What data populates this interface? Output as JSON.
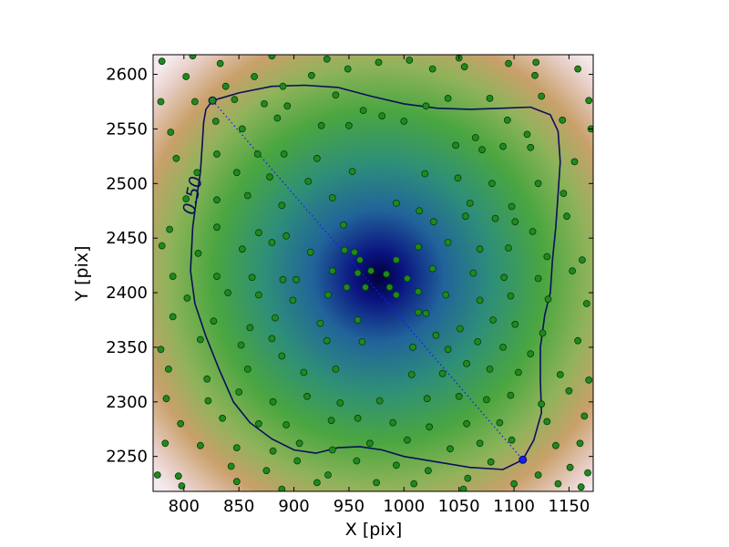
{
  "chart_data": {
    "type": "scatter",
    "xlabel": "X [pix]",
    "ylabel": "Y [pix]",
    "xlim": [
      772,
      1172
    ],
    "ylim": [
      2218,
      2618
    ],
    "xticks": [
      800,
      850,
      900,
      950,
      1000,
      1050,
      1100,
      1150
    ],
    "yticks": [
      2250,
      2300,
      2350,
      2400,
      2450,
      2500,
      2550,
      2600
    ],
    "grid": false,
    "colors": {
      "point": "#1e8a1e",
      "point_edge": "#0b3a0b",
      "contour": "#0a0f5a",
      "endpoint_marker": "#1a1aff",
      "center": "#000040",
      "edge": "#f4e9ec"
    },
    "contour": {
      "level_label": "0.50",
      "label_position": [
        813,
        2488
      ],
      "label_angle_deg": -78,
      "path": [
        [
          815,
          2510
        ],
        [
          817,
          2540
        ],
        [
          818,
          2556
        ],
        [
          820,
          2568
        ],
        [
          826,
          2576
        ],
        [
          850,
          2583
        ],
        [
          880,
          2589
        ],
        [
          910,
          2590
        ],
        [
          940,
          2588
        ],
        [
          970,
          2580
        ],
        [
          1000,
          2573
        ],
        [
          1030,
          2569
        ],
        [
          1060,
          2568
        ],
        [
          1090,
          2569
        ],
        [
          1115,
          2570
        ],
        [
          1133,
          2563
        ],
        [
          1140,
          2548
        ],
        [
          1142,
          2520
        ],
        [
          1140,
          2490
        ],
        [
          1138,
          2460
        ],
        [
          1135,
          2430
        ],
        [
          1133,
          2400
        ],
        [
          1128,
          2380
        ],
        [
          1124,
          2350
        ],
        [
          1124,
          2320
        ],
        [
          1125,
          2290
        ],
        [
          1118,
          2265
        ],
        [
          1108,
          2247
        ],
        [
          1090,
          2238
        ],
        [
          1060,
          2240
        ],
        [
          1030,
          2245
        ],
        [
          1000,
          2250
        ],
        [
          980,
          2256
        ],
        [
          960,
          2259
        ],
        [
          940,
          2258
        ],
        [
          920,
          2253
        ],
        [
          900,
          2256
        ],
        [
          880,
          2266
        ],
        [
          860,
          2281
        ],
        [
          845,
          2300
        ],
        [
          832,
          2330
        ],
        [
          820,
          2360
        ],
        [
          810,
          2390
        ],
        [
          806,
          2420
        ],
        [
          808,
          2460
        ],
        [
          812,
          2490
        ],
        [
          815,
          2510
        ]
      ]
    },
    "line_segment": {
      "start": [
        826,
        2576
      ],
      "end": [
        1108,
        2247
      ],
      "style": "dotted"
    },
    "density_center": [
      977,
      2415
    ],
    "points": [
      [
        780,
        2612
      ],
      [
        808,
        2617
      ],
      [
        833,
        2610
      ],
      [
        880,
        2617
      ],
      [
        930,
        2614
      ],
      [
        977,
        2611
      ],
      [
        1005,
        2613
      ],
      [
        1050,
        2615
      ],
      [
        1095,
        2610
      ],
      [
        1120,
        2611
      ],
      [
        802,
        2598
      ],
      [
        838,
        2589
      ],
      [
        864,
        2598
      ],
      [
        890,
        2589
      ],
      [
        916,
        2599
      ],
      [
        949,
        2605
      ],
      [
        1026,
        2605
      ],
      [
        1055,
        2607
      ],
      [
        1119,
        2599
      ],
      [
        1158,
        2605
      ],
      [
        779,
        2575
      ],
      [
        810,
        2575
      ],
      [
        846,
        2577
      ],
      [
        873,
        2573
      ],
      [
        894,
        2571
      ],
      [
        938,
        2581
      ],
      [
        963,
        2567
      ],
      [
        1020,
        2571
      ],
      [
        1040,
        2578
      ],
      [
        1078,
        2578
      ],
      [
        1125,
        2580
      ],
      [
        1168,
        2576
      ],
      [
        788,
        2547
      ],
      [
        829,
        2557
      ],
      [
        853,
        2550
      ],
      [
        885,
        2560
      ],
      [
        925,
        2553
      ],
      [
        950,
        2553
      ],
      [
        980,
        2562
      ],
      [
        1000,
        2557
      ],
      [
        1065,
        2542
      ],
      [
        1094,
        2558
      ],
      [
        1112,
        2545
      ],
      [
        1144,
        2558
      ],
      [
        1170,
        2550
      ],
      [
        793,
        2523
      ],
      [
        830,
        2527
      ],
      [
        867,
        2527
      ],
      [
        891,
        2527
      ],
      [
        921,
        2523
      ],
      [
        1047,
        2535
      ],
      [
        1071,
        2531
      ],
      [
        1090,
        2534
      ],
      [
        1115,
        2533
      ],
      [
        1155,
        2520
      ],
      [
        812,
        2510
      ],
      [
        848,
        2510
      ],
      [
        878,
        2506
      ],
      [
        913,
        2502
      ],
      [
        953,
        2511
      ],
      [
        1019,
        2509
      ],
      [
        1049,
        2505
      ],
      [
        1080,
        2500
      ],
      [
        1122,
        2500
      ],
      [
        1145,
        2491
      ],
      [
        802,
        2486
      ],
      [
        830,
        2485
      ],
      [
        858,
        2489
      ],
      [
        889,
        2480
      ],
      [
        935,
        2487
      ],
      [
        993,
        2482
      ],
      [
        1014,
        2475
      ],
      [
        1060,
        2482
      ],
      [
        1098,
        2479
      ],
      [
        1148,
        2470
      ],
      [
        787,
        2458
      ],
      [
        830,
        2460
      ],
      [
        868,
        2455
      ],
      [
        893,
        2452
      ],
      [
        945,
        2462
      ],
      [
        1027,
        2465
      ],
      [
        1056,
        2470
      ],
      [
        1083,
        2468
      ],
      [
        1101,
        2465
      ],
      [
        1117,
        2456
      ],
      [
        780,
        2443
      ],
      [
        813,
        2436
      ],
      [
        853,
        2440
      ],
      [
        880,
        2446
      ],
      [
        915,
        2437
      ],
      [
        955,
        2437
      ],
      [
        1013,
        2442
      ],
      [
        1040,
        2446
      ],
      [
        1069,
        2440
      ],
      [
        1095,
        2441
      ],
      [
        1130,
        2433
      ],
      [
        1162,
        2430
      ],
      [
        790,
        2415
      ],
      [
        830,
        2415
      ],
      [
        862,
        2414
      ],
      [
        890,
        2412
      ],
      [
        935,
        2420
      ],
      [
        958,
        2418
      ],
      [
        970,
        2420
      ],
      [
        984,
        2417
      ],
      [
        1026,
        2422
      ],
      [
        1063,
        2418
      ],
      [
        1091,
        2414
      ],
      [
        1122,
        2413
      ],
      [
        1153,
        2420
      ],
      [
        803,
        2395
      ],
      [
        840,
        2400
      ],
      [
        868,
        2398
      ],
      [
        899,
        2393
      ],
      [
        931,
        2398
      ],
      [
        948,
        2405
      ],
      [
        965,
        2405
      ],
      [
        993,
        2398
      ],
      [
        1013,
        2401
      ],
      [
        1038,
        2398
      ],
      [
        1069,
        2393
      ],
      [
        1097,
        2397
      ],
      [
        1131,
        2394
      ],
      [
        1166,
        2390
      ],
      [
        790,
        2378
      ],
      [
        827,
        2374
      ],
      [
        860,
        2368
      ],
      [
        883,
        2377
      ],
      [
        924,
        2372
      ],
      [
        958,
        2375
      ],
      [
        1020,
        2381
      ],
      [
        1051,
        2367
      ],
      [
        1081,
        2375
      ],
      [
        1101,
        2371
      ],
      [
        1126,
        2363
      ],
      [
        779,
        2348
      ],
      [
        815,
        2357
      ],
      [
        852,
        2352
      ],
      [
        880,
        2358
      ],
      [
        930,
        2356
      ],
      [
        962,
        2355
      ],
      [
        1008,
        2350
      ],
      [
        1040,
        2348
      ],
      [
        1067,
        2355
      ],
      [
        1090,
        2350
      ],
      [
        1115,
        2344
      ],
      [
        1158,
        2356
      ],
      [
        786,
        2330
      ],
      [
        821,
        2321
      ],
      [
        858,
        2330
      ],
      [
        889,
        2342
      ],
      [
        909,
        2327
      ],
      [
        938,
        2330
      ],
      [
        1007,
        2325
      ],
      [
        1035,
        2326
      ],
      [
        1057,
        2335
      ],
      [
        1078,
        2330
      ],
      [
        1104,
        2327
      ],
      [
        1142,
        2325
      ],
      [
        1168,
        2320
      ],
      [
        784,
        2303
      ],
      [
        822,
        2301
      ],
      [
        850,
        2309
      ],
      [
        881,
        2300
      ],
      [
        912,
        2305
      ],
      [
        942,
        2299
      ],
      [
        978,
        2301
      ],
      [
        1021,
        2303
      ],
      [
        1050,
        2305
      ],
      [
        1075,
        2302
      ],
      [
        1097,
        2306
      ],
      [
        1125,
        2298
      ],
      [
        1150,
        2310
      ],
      [
        797,
        2280
      ],
      [
        835,
        2285
      ],
      [
        868,
        2280
      ],
      [
        893,
        2279
      ],
      [
        934,
        2283
      ],
      [
        958,
        2285
      ],
      [
        990,
        2281
      ],
      [
        1023,
        2277
      ],
      [
        1057,
        2280
      ],
      [
        1087,
        2281
      ],
      [
        1130,
        2282
      ],
      [
        1164,
        2287
      ],
      [
        783,
        2262
      ],
      [
        815,
        2260
      ],
      [
        848,
        2258
      ],
      [
        881,
        2255
      ],
      [
        905,
        2262
      ],
      [
        935,
        2256
      ],
      [
        969,
        2262
      ],
      [
        1003,
        2265
      ],
      [
        1042,
        2257
      ],
      [
        1069,
        2262
      ],
      [
        1098,
        2265
      ],
      [
        1138,
        2260
      ],
      [
        1160,
        2262
      ],
      [
        776,
        2233
      ],
      [
        795,
        2232
      ],
      [
        843,
        2241
      ],
      [
        875,
        2237
      ],
      [
        903,
        2246
      ],
      [
        931,
        2233
      ],
      [
        957,
        2246
      ],
      [
        993,
        2242
      ],
      [
        1022,
        2237
      ],
      [
        1058,
        2230
      ],
      [
        1079,
        2245
      ],
      [
        1122,
        2233
      ],
      [
        1151,
        2240
      ],
      [
        1167,
        2235
      ],
      [
        798,
        2223
      ],
      [
        848,
        2227
      ],
      [
        889,
        2220
      ],
      [
        921,
        2226
      ],
      [
        975,
        2226
      ],
      [
        1009,
        2225
      ],
      [
        1054,
        2220
      ],
      [
        1100,
        2225
      ],
      [
        1140,
        2225
      ],
      [
        1161,
        2222
      ],
      [
        902,
        2412
      ],
      [
        946,
        2439
      ],
      [
        960,
        2430
      ],
      [
        993,
        2430
      ],
      [
        1013,
        2382
      ],
      [
        1029,
        2361
      ],
      [
        1003,
        2413
      ],
      [
        987,
        2405
      ]
    ]
  }
}
